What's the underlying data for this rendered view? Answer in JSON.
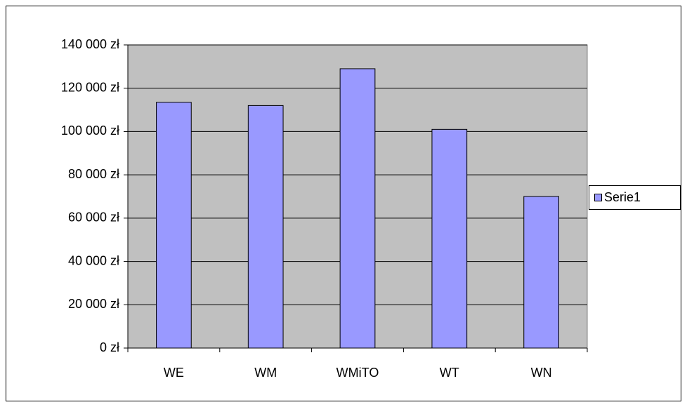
{
  "chart_data": {
    "type": "bar",
    "categories": [
      "WE",
      "WM",
      "WMiTO",
      "WT",
      "WN"
    ],
    "series": [
      {
        "name": "Serie1",
        "color": "#9999ff",
        "values": [
          113500,
          112000,
          129000,
          101000,
          70000
        ]
      }
    ],
    "ylim": [
      0,
      140000
    ],
    "yticks": [
      {
        "value": 0,
        "label": "0 zł"
      },
      {
        "value": 20000,
        "label": "20 000 zł"
      },
      {
        "value": 40000,
        "label": "40 000 zł"
      },
      {
        "value": 60000,
        "label": "60 000 zł"
      },
      {
        "value": 80000,
        "label": "80 000 zł"
      },
      {
        "value": 100000,
        "label": "100 000 zł"
      },
      {
        "value": 120000,
        "label": "120 000 zł"
      },
      {
        "value": 140000,
        "label": "140 000 zł"
      }
    ],
    "grid": true,
    "legend": "right",
    "plot_background": "#c0c0c0"
  }
}
